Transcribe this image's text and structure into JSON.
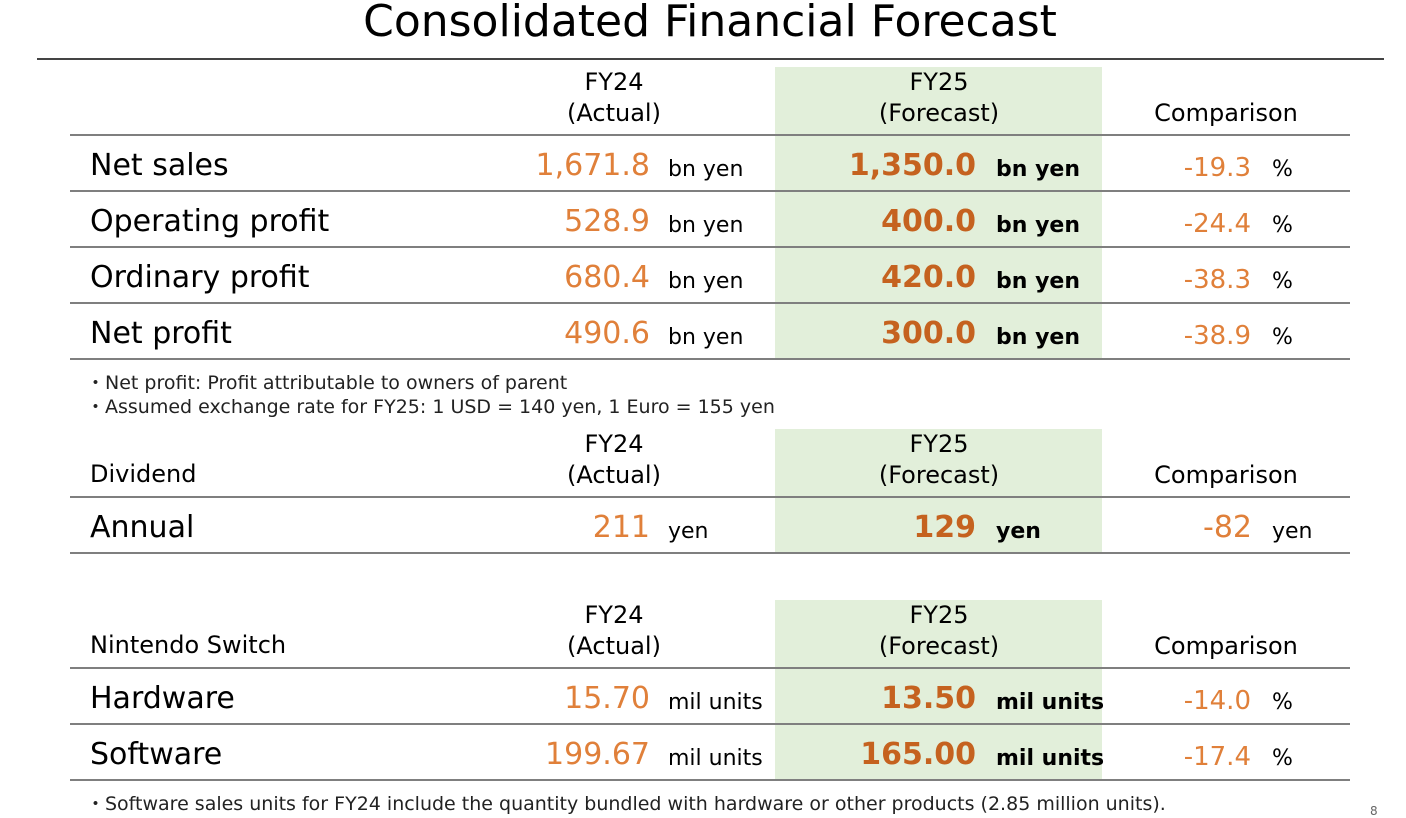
{
  "title": "Consolidated Financial Forecast",
  "headers": {
    "fy24": [
      "FY24",
      "(Actual)"
    ],
    "fy25": [
      "FY25",
      "(Forecast)"
    ],
    "comparison": "Comparison"
  },
  "financials": {
    "rows": [
      {
        "label": "Net sales",
        "fy24": "1,671.8",
        "fy24_unit": "bn yen",
        "fy25": "1,350.0",
        "fy25_unit": "bn yen",
        "cmp": "-19.3",
        "cmp_unit": "%"
      },
      {
        "label": "Operating profit",
        "fy24": "528.9",
        "fy24_unit": "bn yen",
        "fy25": "400.0",
        "fy25_unit": "bn yen",
        "cmp": "-24.4",
        "cmp_unit": "%"
      },
      {
        "label": "Ordinary profit",
        "fy24": "680.4",
        "fy24_unit": "bn yen",
        "fy25": "420.0",
        "fy25_unit": "bn yen",
        "cmp": "-38.3",
        "cmp_unit": "%"
      },
      {
        "label": "Net profit",
        "fy24": "490.6",
        "fy24_unit": "bn yen",
        "fy25": "300.0",
        "fy25_unit": "bn yen",
        "cmp": "-38.9",
        "cmp_unit": "%"
      }
    ],
    "notes": [
      "・Net profit: Profit attributable to owners of parent",
      "・Assumed exchange rate for FY25: 1 USD = 140 yen, 1 Euro = 155 yen"
    ]
  },
  "dividend": {
    "section_label": "Dividend",
    "rows": [
      {
        "label": "Annual",
        "fy24": "211",
        "fy24_unit": "yen",
        "fy25": "129",
        "fy25_unit": "yen",
        "cmp": "-82",
        "cmp_unit": "yen"
      }
    ]
  },
  "switch": {
    "section_label": "Nintendo Switch",
    "rows": [
      {
        "label": "Hardware",
        "fy24": "15.70",
        "fy24_unit": "mil units",
        "fy25": "13.50",
        "fy25_unit": "mil units",
        "cmp": "-14.0",
        "cmp_unit": "%"
      },
      {
        "label": "Software",
        "fy24": "199.67",
        "fy24_unit": "mil units",
        "fy25": "165.00",
        "fy25_unit": "mil units",
        "cmp": "-17.4",
        "cmp_unit": "%"
      }
    ],
    "notes": [
      "・Software sales units for FY24 include the quantity bundled with hardware or other products (2.85 million units)."
    ]
  },
  "page_number": "8",
  "colors": {
    "highlight": "#e2efda",
    "value": "#e0803a",
    "value_bold": "#c5621f",
    "rule": "#7f7f7f"
  }
}
